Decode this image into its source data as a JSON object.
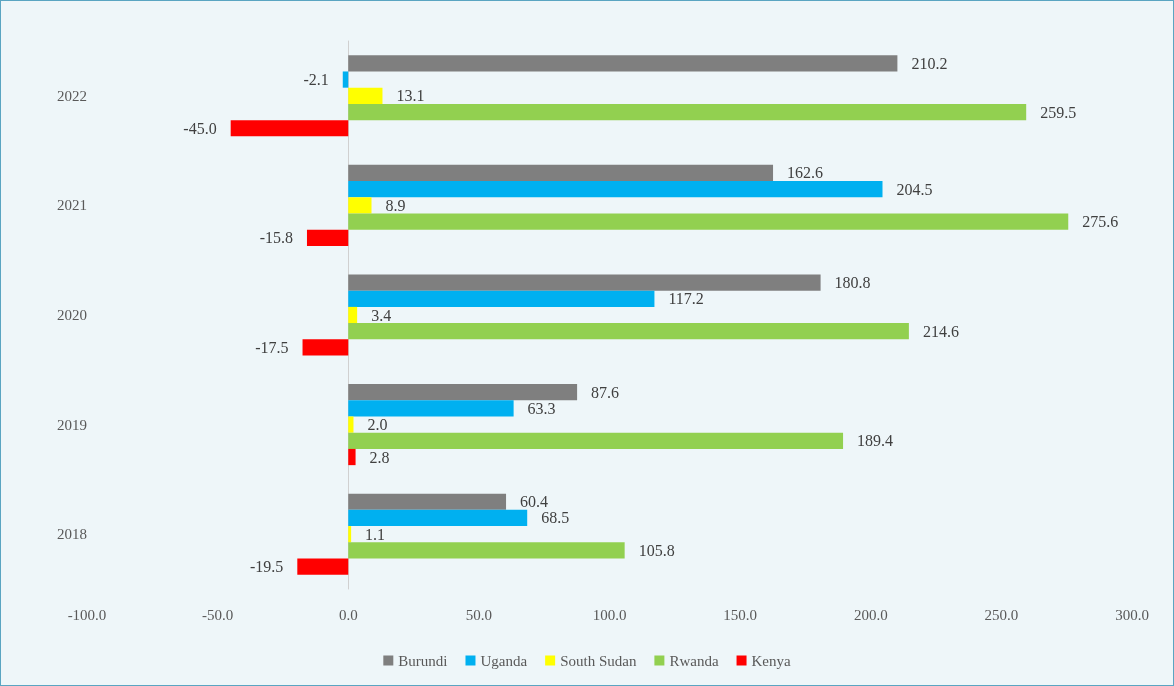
{
  "chart_data": {
    "type": "bar",
    "orientation": "horizontal",
    "categories": [
      "2022",
      "2021",
      "2020",
      "2019",
      "2018"
    ],
    "series": [
      {
        "name": "Burundi",
        "color": "#7f7f7f",
        "values": [
          210.2,
          162.6,
          180.8,
          87.6,
          60.4
        ],
        "value_labels": [
          "210.2",
          "162.6",
          "180.8",
          "87.6",
          "60.4"
        ]
      },
      {
        "name": "Uganda",
        "color": "#00b0f0",
        "values": [
          -2.1,
          204.5,
          117.2,
          63.3,
          68.5
        ],
        "value_labels": [
          "-2.1",
          "204.5",
          "117.2",
          "63.3",
          "68.5"
        ]
      },
      {
        "name": "South Sudan",
        "color": "#ffff00",
        "values": [
          13.1,
          8.9,
          3.4,
          2.0,
          1.1
        ],
        "value_labels": [
          "13.1",
          "8.9",
          "3.4",
          "2.0",
          "1.1"
        ]
      },
      {
        "name": "Rwanda",
        "color": "#92d050",
        "values": [
          259.5,
          275.6,
          214.6,
          189.4,
          105.8
        ],
        "value_labels": [
          "259.5",
          "275.6",
          "214.6",
          "189.4",
          "105.8"
        ]
      },
      {
        "name": "Kenya",
        "color": "#ff0000",
        "values": [
          -45.0,
          -15.8,
          -17.5,
          2.8,
          -19.5
        ],
        "value_labels": [
          "-45.0",
          "-15.8",
          "-17.5",
          "2.8",
          "-19.5"
        ]
      }
    ],
    "xlim": [
      -100,
      300
    ],
    "xticks": [
      {
        "value": -100,
        "label": "-100.0"
      },
      {
        "value": -50,
        "label": "-50.0"
      },
      {
        "value": 0,
        "label": "0.0"
      },
      {
        "value": 50,
        "label": "50.0"
      },
      {
        "value": 100,
        "label": "100.0"
      },
      {
        "value": 150,
        "label": "150.0"
      },
      {
        "value": 200,
        "label": "200.0"
      },
      {
        "value": 250,
        "label": "250.0"
      },
      {
        "value": 300,
        "label": "300.0"
      }
    ],
    "legend": "bottom"
  }
}
